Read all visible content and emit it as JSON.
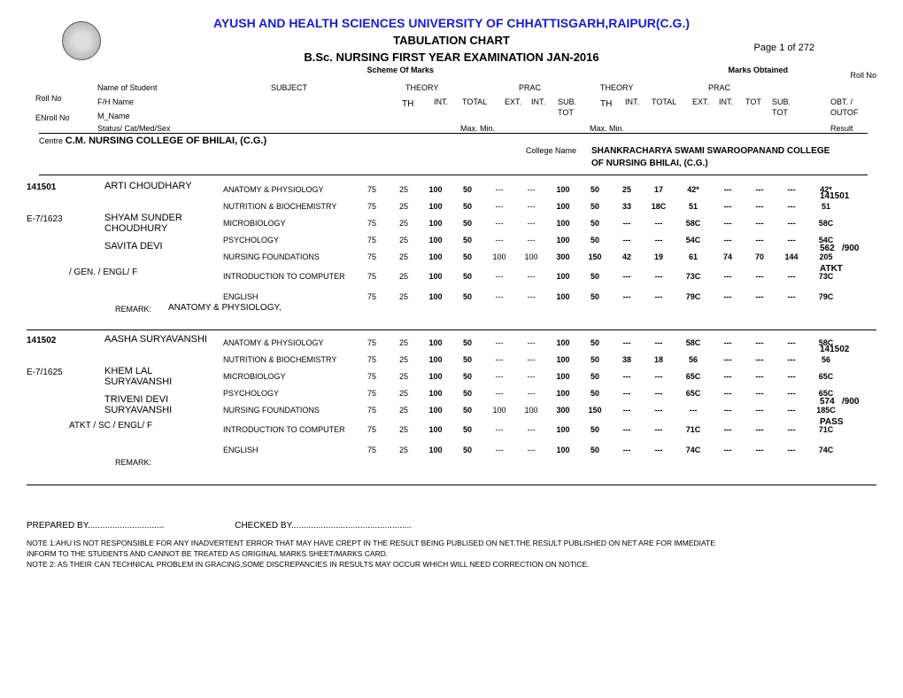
{
  "header": {
    "university": "AYUSH AND HEALTH SCIENCES UNIVERSITY OF CHHATTISGARH,RAIPUR(C.G.)",
    "chart_title": "TABULATION CHART",
    "exam_title": "B.Sc. NURSING FIRST YEAR EXAMINATION  JAN-2016",
    "page": "Page 1 of 272",
    "scheme_label": "Scheme Of Marks",
    "marks_label": "Marks Obtained",
    "rollno_label": "Roll No"
  },
  "hdr": {
    "rollno": "Roll No",
    "enroll": "ENroll No",
    "name_student": "Name of Student",
    "fh": "F/H Name",
    "mname": "M_Name",
    "status": "Status/ Cat/Med/Sex",
    "subject": "SUBJECT",
    "theory1": "THEORY",
    "prac1": "PRAC",
    "theory2": "THEORY",
    "prac2": "PRAC",
    "th": "TH",
    "int": "INT.",
    "total": "TOTAL",
    "ext": "EXT.",
    "sub": "SUB.",
    "tot": "TOT",
    "subtot": "SUB.\nTOT",
    "tot2": "TOT",
    "maxmin": "Max. Min.",
    "obt": "OBT. /",
    "outof": "OUTOF",
    "result": "Result"
  },
  "centre": {
    "label": "Centre",
    "name": "C.M. NURSING  COLLEGE OF   BHILAI, (C.G.)",
    "college_label": "College Name",
    "college_name1": "SHANKRACHARYA SWAMI SWAROOPANAND COLLEGE",
    "college_name2": "OF NURSING BHILAI, (C.G.)"
  },
  "subjects_list": [
    "ANATOMY & PHYSIOLOGY",
    "NUTRITION & BIOCHEMISTRY",
    "MICROBIOLOGY",
    "PSYCHOLOGY",
    "NURSING FOUNDATIONS",
    "INTRODUCTION TO COMPUTER",
    "ENGLISH"
  ],
  "scheme_rows": [
    {
      "th": "75",
      "int": "25",
      "total_max": "100",
      "total_min": "50",
      "ext": "---",
      "pint": "---",
      "sub_max": "100",
      "sub_min": "50"
    },
    {
      "th": "75",
      "int": "25",
      "total_max": "100",
      "total_min": "50",
      "ext": "---",
      "pint": "---",
      "sub_max": "100",
      "sub_min": "50"
    },
    {
      "th": "75",
      "int": "25",
      "total_max": "100",
      "total_min": "50",
      "ext": "---",
      "pint": "---",
      "sub_max": "100",
      "sub_min": "50"
    },
    {
      "th": "75",
      "int": "25",
      "total_max": "100",
      "total_min": "50",
      "ext": "---",
      "pint": "---",
      "sub_max": "100",
      "sub_min": "50"
    },
    {
      "th": "75",
      "int": "25",
      "total_max": "100",
      "total_min": "50",
      "ext": "100",
      "pint": "100",
      "sub_max": "300",
      "sub_min": "150"
    },
    {
      "th": "75",
      "int": "25",
      "total_max": "100",
      "total_min": "50",
      "ext": "---",
      "pint": "---",
      "sub_max": "100",
      "sub_min": "50"
    },
    {
      "th": "75",
      "int": "25",
      "total_max": "100",
      "total_min": "50",
      "ext": "---",
      "pint": "---",
      "sub_max": "100",
      "sub_min": "50"
    }
  ],
  "students": [
    {
      "rollno": "141501",
      "enroll": "E-7/1623",
      "name": "ARTI CHOUDHARY",
      "fh1": "SHYAM SUNDER",
      "fh2": "CHOUDHURY",
      "m1": "SAVITA DEVI",
      "m2": "",
      "status": "/ GEN. /    ENGL/   F",
      "right_roll": "141501",
      "obt": "562",
      "outof": "/900",
      "result": "ATKT",
      "remark_label": "REMARK:",
      "remark": "ANATOMY & PHYSIOLOGY,",
      "rows": [
        {
          "th": "25",
          "int": "17",
          "total": "42*",
          "ext": "---",
          "pint": "---",
          "tot": "---",
          "sub": "42*"
        },
        {
          "th": "33",
          "int": "18C",
          "total": "51",
          "ext": "---",
          "pint": "---",
          "tot": "---",
          "sub": "51"
        },
        {
          "th": "---",
          "int": "---",
          "total": "58C",
          "ext": "---",
          "pint": "---",
          "tot": "---",
          "sub": "58C"
        },
        {
          "th": "---",
          "int": "---",
          "total": "54C",
          "ext": "---",
          "pint": "---",
          "tot": "---",
          "sub": "54C"
        },
        {
          "th": "42",
          "int": "19",
          "total": "61",
          "ext": "74",
          "pint": "70",
          "tot": "144",
          "sub": "205"
        },
        {
          "th": "---",
          "int": "---",
          "total": "73C",
          "ext": "---",
          "pint": "---",
          "tot": "---",
          "sub": "73C"
        },
        {
          "th": "---",
          "int": "---",
          "total": "79C",
          "ext": "---",
          "pint": "---",
          "tot": "---",
          "sub": "79C"
        }
      ]
    },
    {
      "rollno": "141502",
      "enroll": "E-7/1625",
      "name": "AASHA SURYAVANSHI",
      "fh1": "KHEM LAL",
      "fh2": "SURYAVANSHI",
      "m1": "TRIVENI DEVI",
      "m2": "SURYAVANSHI",
      "status": "ATKT   / SC    /   ENGL/   F",
      "right_roll": "141502",
      "obt": "574",
      "outof": "/900",
      "result": "PASS",
      "remark_label": "REMARK:",
      "remark": "",
      "rows": [
        {
          "th": "---",
          "int": "---",
          "total": "58C",
          "ext": "---",
          "pint": "---",
          "tot": "---",
          "sub": "58C"
        },
        {
          "th": "38",
          "int": "18",
          "total": "56",
          "ext": "---",
          "pint": "---",
          "tot": "---",
          "sub": "56"
        },
        {
          "th": "---",
          "int": "---",
          "total": "65C",
          "ext": "---",
          "pint": "---",
          "tot": "---",
          "sub": "65C"
        },
        {
          "th": "---",
          "int": "---",
          "total": "65C",
          "ext": "---",
          "pint": "---",
          "tot": "---",
          "sub": "65C"
        },
        {
          "th": "---",
          "int": "---",
          "total": "---",
          "ext": "---",
          "pint": "---",
          "tot": "---",
          "sub": "185C"
        },
        {
          "th": "---",
          "int": "---",
          "total": "71C",
          "ext": "---",
          "pint": "---",
          "tot": "---",
          "sub": "71C"
        },
        {
          "th": "---",
          "int": "---",
          "total": "74C",
          "ext": "---",
          "pint": "---",
          "tot": "---",
          "sub": "74C"
        }
      ]
    }
  ],
  "footer": {
    "prepared": "PREPARED BY...............................",
    "checked": "CHECKED BY.................................................",
    "note1": "NOTE 1:AHU IS NOT RESPONSIBLE FOR ANY INADVERTENT ERROR THAT MAY HAVE CREPT IN THE RESULT BEING PUBLISED ON NET.THE RESULT PUBLISHED ON NET ARE FOR IMMEDIATE",
    "note1b": "INFORM TO THE STUDENTS AND CANNOT BE TREATED AS ORIGINAL MARKS SHEET/MARKS CARD.",
    "note2": "NOTE 2: AS THEIR CAN TECHNICAL PROBLEM IN GRACING,SOME DISCREPANCIES IN RESULTS MAY OCCUR WHICH WILL NEED CORRECTION ON NOTICE."
  }
}
